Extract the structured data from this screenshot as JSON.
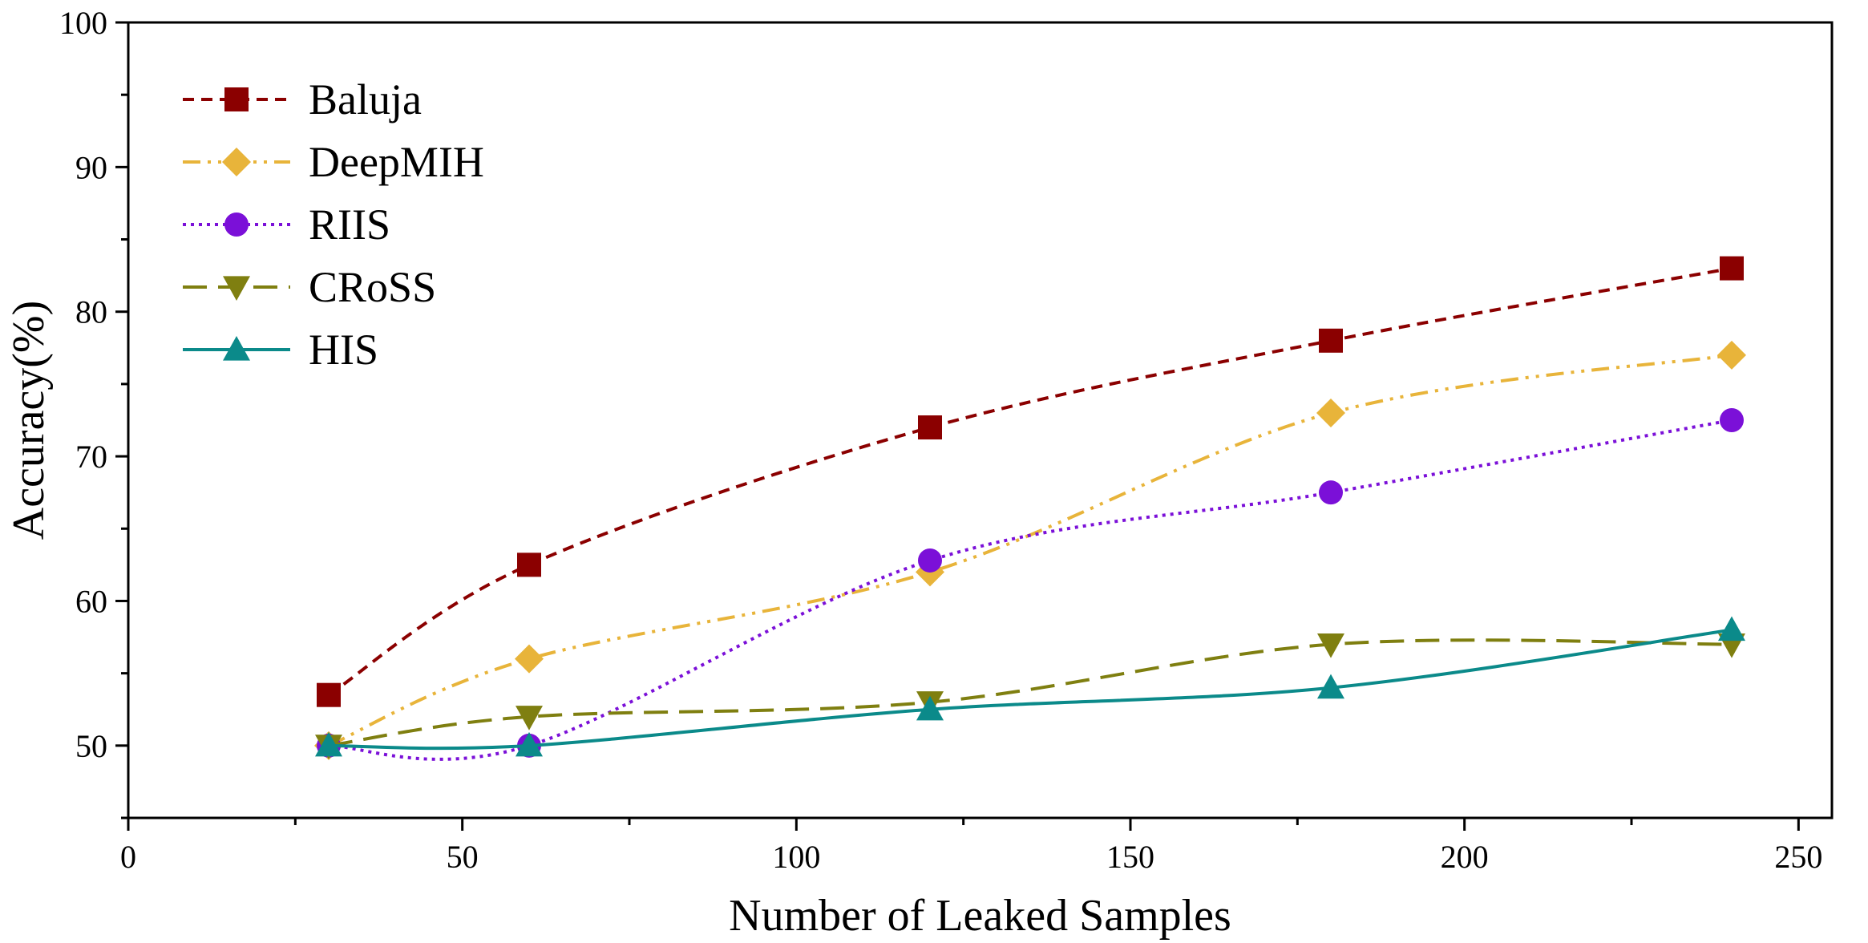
{
  "chart_data": {
    "type": "line",
    "title": "",
    "xlabel": "Number of Leaked Samples",
    "ylabel": "Accuracy(%)",
    "xlim": [
      0,
      255
    ],
    "ylim": [
      45,
      100
    ],
    "xticks": [
      0,
      50,
      100,
      150,
      200,
      250
    ],
    "xtick_labels": [
      "0",
      "50",
      "100",
      "150",
      "200",
      "250"
    ],
    "yticks": [
      50,
      60,
      70,
      80,
      90,
      100
    ],
    "ytick_labels": [
      "50",
      "60",
      "70",
      "80",
      "90",
      "100"
    ],
    "grid": false,
    "legend_position": "top-left",
    "x": [
      30,
      60,
      120,
      180,
      240
    ],
    "series": [
      {
        "name": "Baluja",
        "values": [
          53.5,
          62.5,
          72,
          78,
          83
        ],
        "color": "#8b0000",
        "line_style": "dash-short",
        "marker": "square"
      },
      {
        "name": "DeepMIH",
        "values": [
          50,
          56,
          62,
          73,
          77
        ],
        "color": "#e8b43a",
        "line_style": "dash-dot-dot",
        "marker": "diamond"
      },
      {
        "name": "RIIS",
        "values": [
          50,
          50,
          62.8,
          67.5,
          72.5
        ],
        "color": "#7b10d8",
        "line_style": "dotted",
        "marker": "circle"
      },
      {
        "name": "CRoSS",
        "values": [
          50,
          52,
          53,
          57,
          57
        ],
        "color": "#7f7f10",
        "line_style": "dashed",
        "marker": "triangle-down"
      },
      {
        "name": "HIS",
        "values": [
          50,
          50,
          52.5,
          54,
          58
        ],
        "color": "#0b8a8a",
        "line_style": "solid",
        "marker": "triangle-up"
      }
    ]
  }
}
